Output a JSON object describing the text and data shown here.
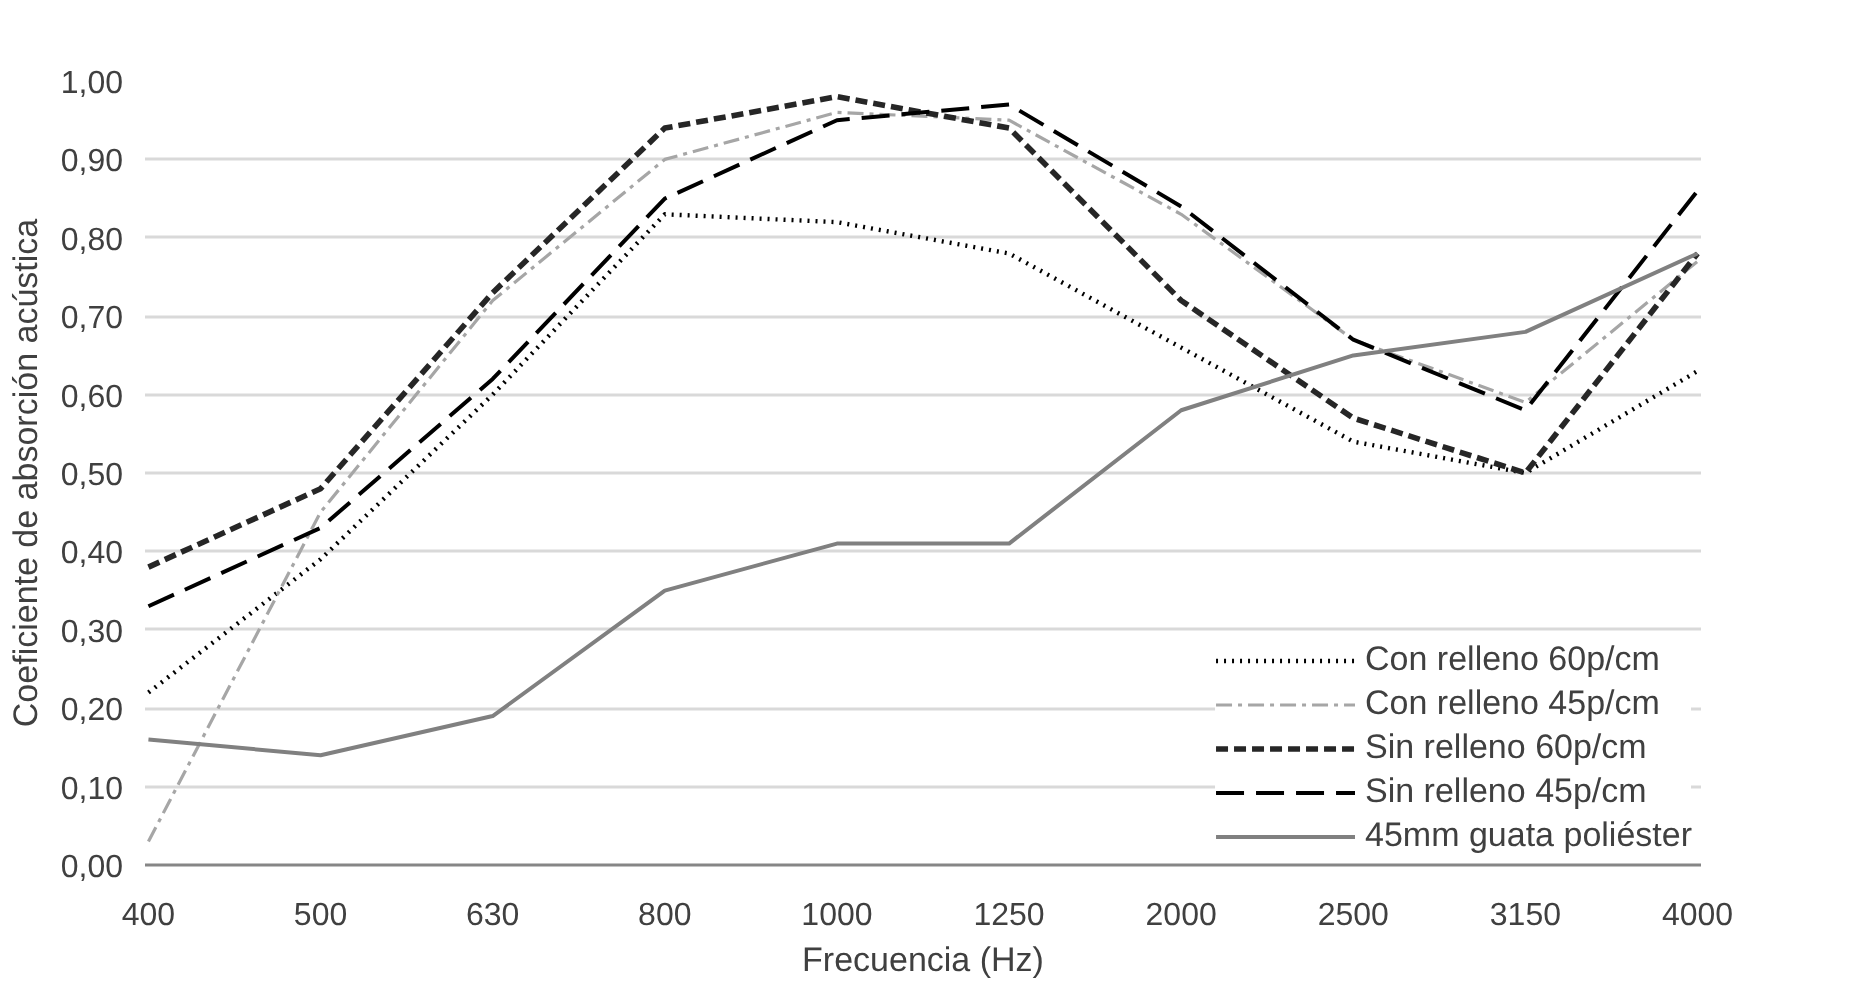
{
  "chart_data": {
    "type": "line",
    "xlabel": "Frecuencia (Hz)",
    "ylabel": "Coeficiente de absorción acústica",
    "categories": [
      "400",
      "500",
      "630",
      "800",
      "1000",
      "1250",
      "2000",
      "2500",
      "3150",
      "4000"
    ],
    "series": [
      {
        "name": "Con relleno 60p/cm",
        "color": "#000000",
        "line_style": "dotted",
        "values": [
          0.22,
          0.39,
          0.6,
          0.83,
          0.82,
          0.78,
          0.66,
          0.54,
          0.5,
          0.63
        ]
      },
      {
        "name": "Con relleno 45p/cm",
        "color": "#a6a6a6",
        "line_style": "dashdot",
        "values": [
          0.03,
          0.45,
          0.72,
          0.9,
          0.96,
          0.95,
          0.83,
          0.67,
          0.59,
          0.77
        ]
      },
      {
        "name": "Sin relleno 60p/cm",
        "color": "#262626",
        "line_style": "dashed",
        "values": [
          0.38,
          0.48,
          0.73,
          0.94,
          0.98,
          0.94,
          0.72,
          0.57,
          0.5,
          0.78
        ]
      },
      {
        "name": "Sin relleno 45p/cm",
        "color": "#000000",
        "line_style": "longdash",
        "values": [
          0.33,
          0.43,
          0.62,
          0.85,
          0.95,
          0.97,
          0.84,
          0.67,
          0.58,
          0.86
        ]
      },
      {
        "name": "45mm guata poliéster",
        "color": "#808080",
        "line_style": "solid",
        "values": [
          0.16,
          0.14,
          0.19,
          0.35,
          0.41,
          0.41,
          0.58,
          0.65,
          0.68,
          0.78
        ]
      }
    ],
    "ylim": [
      0,
      1
    ],
    "yticks": [
      {
        "value": 0,
        "label": "0,00"
      },
      {
        "value": 0.1,
        "label": "0,10"
      },
      {
        "value": 0.2,
        "label": "0,20"
      },
      {
        "value": 0.3,
        "label": "0,30"
      },
      {
        "value": 0.4,
        "label": "0,40"
      },
      {
        "value": 0.5,
        "label": "0,50"
      },
      {
        "value": 0.6,
        "label": "0,60"
      },
      {
        "value": 0.7,
        "label": "0,70"
      },
      {
        "value": 0.8,
        "label": "0,80"
      },
      {
        "value": 0.9,
        "label": "0,90"
      },
      {
        "value": 1,
        "label": "1,00"
      }
    ],
    "grid": "y",
    "legend": "bottom right",
    "marker": "none"
  }
}
